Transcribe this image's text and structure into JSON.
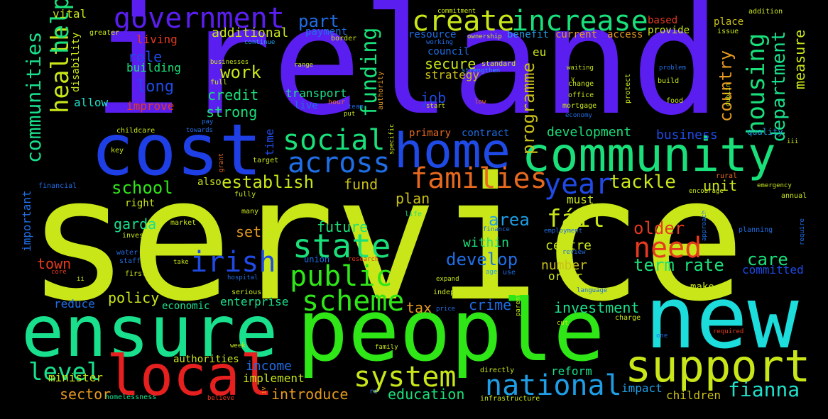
{
  "words": [
    {
      "text": "service",
      "color": "#c9e619"
    },
    {
      "text": "ireland",
      "color": "#5b1ef0"
    },
    {
      "text": "people",
      "color": "#2fe617"
    },
    {
      "text": "ensure",
      "color": "#19e08c"
    },
    {
      "text": "new",
      "color": "#1cdcdc"
    },
    {
      "text": "cost",
      "color": "#1f3fe6"
    },
    {
      "text": "community",
      "color": "#19e07a"
    },
    {
      "text": "home",
      "color": "#1f4ae6"
    },
    {
      "text": "local",
      "color": "#e61f1f"
    },
    {
      "text": "support",
      "color": "#c9e619"
    },
    {
      "text": "government",
      "color": "#5b1ef0"
    },
    {
      "text": "create",
      "color": "#c9e619"
    },
    {
      "text": "increase",
      "color": "#19e07a"
    },
    {
      "text": "families",
      "color": "#e6691f"
    },
    {
      "text": "across",
      "color": "#1f6ee6"
    },
    {
      "text": "social",
      "color": "#19e07a"
    },
    {
      "text": "public",
      "color": "#2fe617"
    },
    {
      "text": "state",
      "color": "#19e07a"
    },
    {
      "text": "system",
      "color": "#c9e619"
    },
    {
      "text": "national",
      "color": "#1f9ee6"
    },
    {
      "text": "scheme",
      "color": "#2fe617"
    },
    {
      "text": "irish",
      "color": "#1f4ae6"
    },
    {
      "text": "health",
      "color": "#c9e619"
    },
    {
      "text": "help",
      "color": "#19e07a"
    },
    {
      "text": "communities",
      "color": "#19e08c"
    },
    {
      "text": "housing",
      "color": "#19e07a"
    },
    {
      "text": "need",
      "color": "#e63a1f"
    },
    {
      "text": "year",
      "color": "#1f4ae6"
    },
    {
      "text": "fáil",
      "color": "#c9e619"
    },
    {
      "text": "level",
      "color": "#19e08c"
    },
    {
      "text": "fianna",
      "color": "#1fe0c9"
    },
    {
      "text": "funding",
      "color": "#19e07a"
    },
    {
      "text": "programme",
      "color": "#c9c019"
    },
    {
      "text": "department",
      "color": "#19e08c"
    },
    {
      "text": "country",
      "color": "#e69a1f"
    },
    {
      "text": "measure",
      "color": "#c9e619"
    },
    {
      "text": "tackle",
      "color": "#c9e619"
    },
    {
      "text": "establish",
      "color": "#c9e619"
    },
    {
      "text": "school",
      "color": "#2fe617"
    },
    {
      "text": "develop",
      "color": "#1f6ee6"
    },
    {
      "text": "older",
      "color": "#e63a1f"
    },
    {
      "text": "term",
      "color": "#19e07a"
    },
    {
      "text": "rate",
      "color": "#19e07a"
    },
    {
      "text": "care",
      "color": "#19e07a"
    },
    {
      "text": "investment",
      "color": "#19e08c"
    },
    {
      "text": "strong",
      "color": "#19e07a"
    },
    {
      "text": "credit",
      "color": "#19e07a"
    },
    {
      "text": "work",
      "color": "#c9e619"
    },
    {
      "text": "long",
      "color": "#1f4ae6"
    },
    {
      "text": "role",
      "color": "#1f4ae6"
    },
    {
      "text": "part",
      "color": "#1f6ee6"
    },
    {
      "text": "additional",
      "color": "#c9e619"
    },
    {
      "text": "development",
      "color": "#19e07a"
    },
    {
      "text": "business",
      "color": "#1f4ae6"
    },
    {
      "text": "area",
      "color": "#1f9ee6"
    },
    {
      "text": "future",
      "color": "#19e07a"
    },
    {
      "text": "within",
      "color": "#19e07a"
    },
    {
      "text": "centre",
      "color": "#c9e619"
    },
    {
      "text": "number",
      "color": "#c9c019"
    },
    {
      "text": "order",
      "color": "#c9e619"
    },
    {
      "text": "policy",
      "color": "#c9e619"
    },
    {
      "text": "enterprise",
      "color": "#19e08c"
    },
    {
      "text": "crime",
      "color": "#1f6ee6"
    },
    {
      "text": "tax",
      "color": "#e69a1f"
    },
    {
      "text": "town",
      "color": "#e63a1f"
    },
    {
      "text": "garda",
      "color": "#19e08c"
    },
    {
      "text": "set",
      "color": "#e69a1f"
    },
    {
      "text": "plan",
      "color": "#c9c019"
    },
    {
      "text": "fund",
      "color": "#c9c019"
    },
    {
      "text": "must",
      "color": "#c9e619"
    },
    {
      "text": "unit",
      "color": "#c9e619"
    },
    {
      "text": "job",
      "color": "#1f4ae6"
    },
    {
      "text": "secure",
      "color": "#c9e619"
    },
    {
      "text": "strategy",
      "color": "#c9c019"
    },
    {
      "text": "council",
      "color": "#1f6ee6"
    },
    {
      "text": "transport",
      "color": "#19e08c"
    },
    {
      "text": "live",
      "color": "#1f6ee6"
    },
    {
      "text": "improve",
      "color": "#e63a1f"
    },
    {
      "text": "allow",
      "color": "#1fe0c9"
    },
    {
      "text": "building",
      "color": "#19e07a"
    },
    {
      "text": "living",
      "color": "#e63a1f"
    },
    {
      "text": "vital",
      "color": "#c9e619"
    },
    {
      "text": "payment",
      "color": "#1f6ee6"
    },
    {
      "text": "resource",
      "color": "#1f6ee6"
    },
    {
      "text": "benefit",
      "color": "#1f9ee6"
    },
    {
      "text": "current",
      "color": "#e69a1f"
    },
    {
      "text": "access",
      "color": "#e69a1f"
    },
    {
      "text": "provide",
      "color": "#c9e619"
    },
    {
      "text": "based",
      "color": "#e63a1f"
    },
    {
      "text": "place",
      "color": "#c9c019"
    },
    {
      "text": "issue",
      "color": "#c9e619"
    },
    {
      "text": "eu",
      "color": "#c9e619"
    },
    {
      "text": "introduce",
      "color": "#e69a1f"
    },
    {
      "text": "education",
      "color": "#19e07a"
    },
    {
      "text": "income",
      "color": "#1f6ee6"
    },
    {
      "text": "implement",
      "color": "#c9e619"
    },
    {
      "text": "reform",
      "color": "#19e08c"
    },
    {
      "text": "impact",
      "color": "#1f9ee6"
    },
    {
      "text": "children",
      "color": "#c9c019"
    },
    {
      "text": "sector",
      "color": "#e69a1f"
    },
    {
      "text": "minister",
      "color": "#c9e619"
    },
    {
      "text": "authorities",
      "color": "#c9e619"
    },
    {
      "text": "reduce",
      "color": "#1f6ee6"
    },
    {
      "text": "economic",
      "color": "#19e08c"
    },
    {
      "text": "committed",
      "color": "#1f4ae6"
    },
    {
      "text": "make",
      "color": "#c9e619"
    },
    {
      "text": "important",
      "color": "#1f6ee6"
    },
    {
      "text": "disability",
      "color": "#c9e619"
    },
    {
      "text": "time",
      "color": "#1f4ae6"
    },
    {
      "text": "also",
      "color": "#c9e619"
    },
    {
      "text": "right",
      "color": "#c9e619"
    },
    {
      "text": "primary",
      "color": "#e6691f"
    },
    {
      "text": "contract",
      "color": "#1f6ee6"
    },
    {
      "text": "quality",
      "color": "#1f9ee6"
    }
  ],
  "small_words": [
    "commitment",
    "addition",
    "greater",
    "continue",
    "border",
    "ownership",
    "working",
    "range",
    "standard",
    "strengthen",
    "waiting",
    "problem",
    "businesses",
    "full",
    "authority",
    "change",
    "office",
    "mortgage",
    "economy",
    "protect",
    "dublin",
    "build",
    "food",
    "hour",
    "team",
    "put",
    "low",
    "start",
    "pay",
    "towards",
    "childcare",
    "key",
    "grant",
    "specific",
    "target",
    "financial",
    "many",
    "fully",
    "market",
    "invest",
    "life",
    "approach",
    "finance",
    "employment",
    "require",
    "encourage",
    "emergency",
    "annual",
    "rural",
    "group",
    "planning",
    "water",
    "staff",
    "core",
    "ii",
    "first",
    "hospital",
    "union",
    "research",
    "take",
    "expand",
    "age",
    "use",
    "review",
    "language",
    "independent",
    "price",
    "serious",
    "charge",
    "cut",
    "parent",
    "one",
    "week",
    "family",
    "iv",
    "re",
    "believe",
    "homelessness",
    "required",
    "directly",
    "infrastructure",
    "iii",
    "v"
  ]
}
